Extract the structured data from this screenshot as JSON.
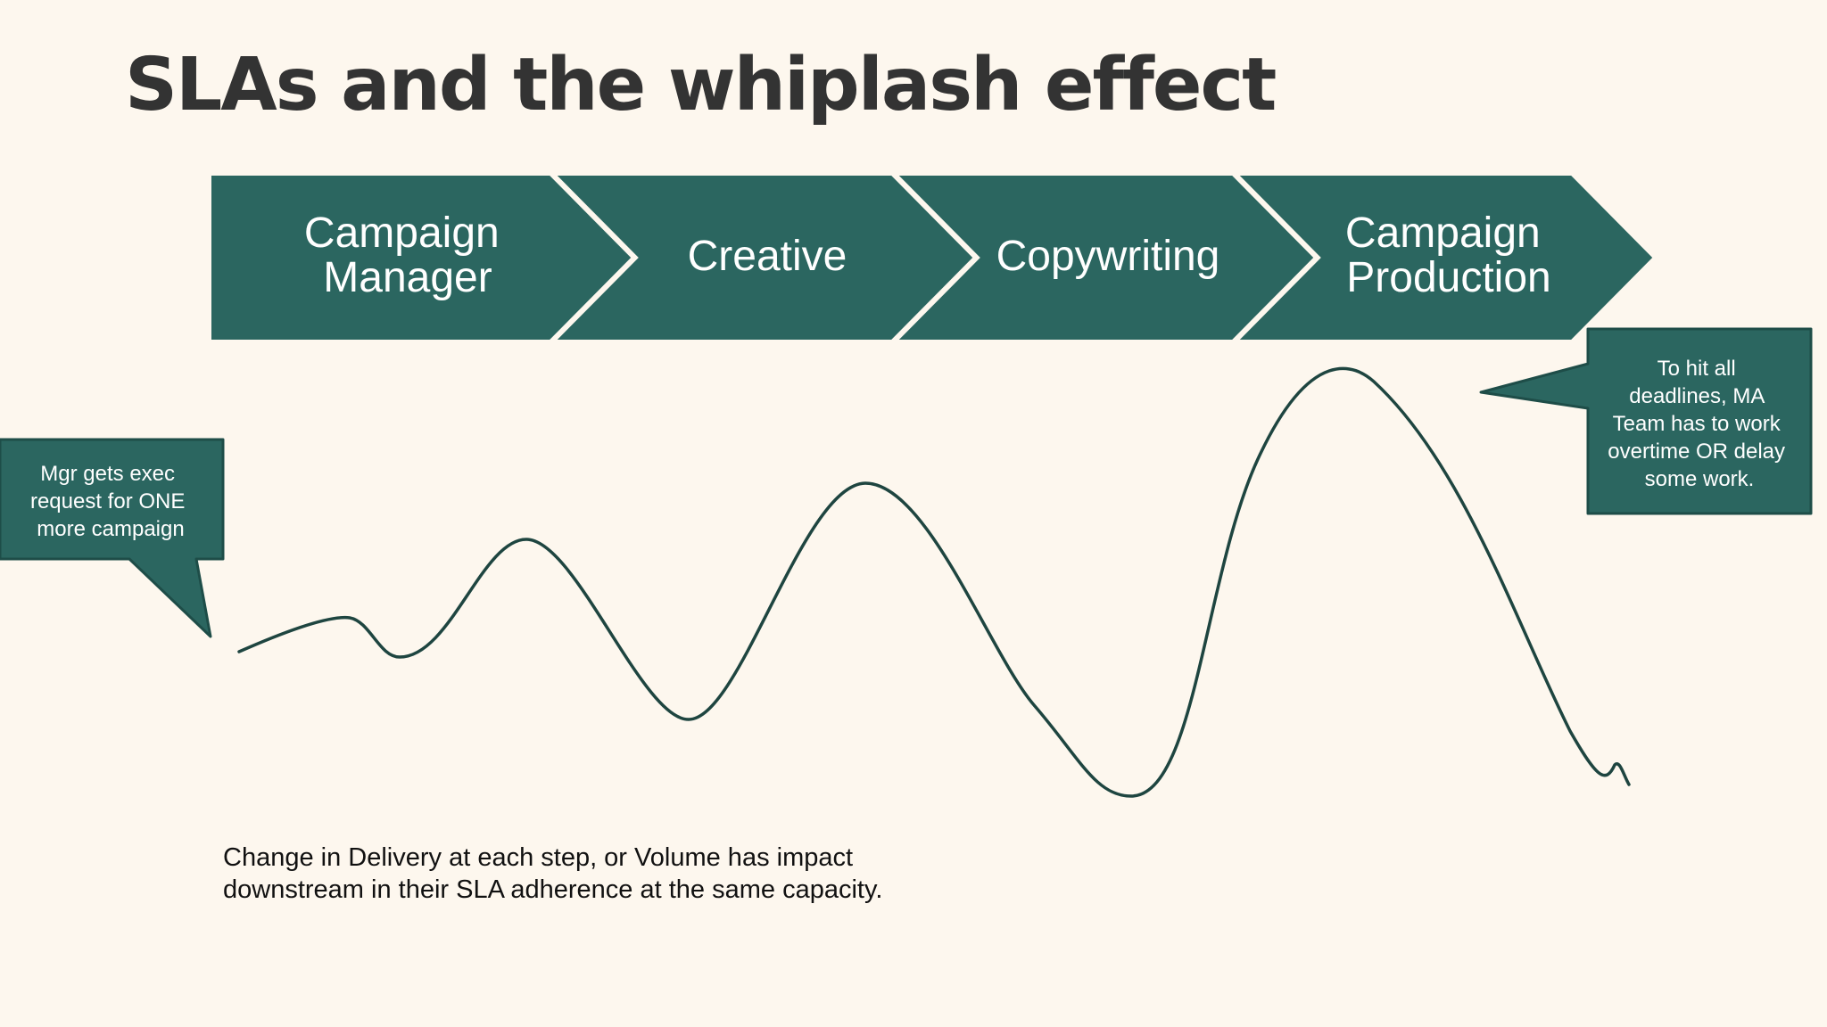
{
  "title": "SLAs and the whiplash effect",
  "colors": {
    "background": "#fdf7ee",
    "chevron_fill": "#2b6660",
    "callout_fill": "#2b6660",
    "callout_border": "#1e4d48",
    "wave_stroke": "#1e4540",
    "title_text": "#333333"
  },
  "process_steps": [
    {
      "lines": [
        "Campaign",
        "Manager"
      ]
    },
    {
      "lines": [
        "Creative"
      ]
    },
    {
      "lines": [
        "Copywriting"
      ]
    },
    {
      "lines": [
        "Campaign",
        "Production"
      ]
    }
  ],
  "callouts": {
    "left": {
      "lines": [
        "Mgr gets exec",
        "request for ONE",
        "more campaign"
      ]
    },
    "right": {
      "lines": [
        "To hit all",
        "deadlines, MA",
        "Team has to work",
        "overtime OR delay",
        "some work."
      ]
    }
  },
  "caption": {
    "lines": [
      "Change in Delivery at each step, or Volume has impact",
      "downstream in their SLA adherence at the same capacity."
    ]
  }
}
